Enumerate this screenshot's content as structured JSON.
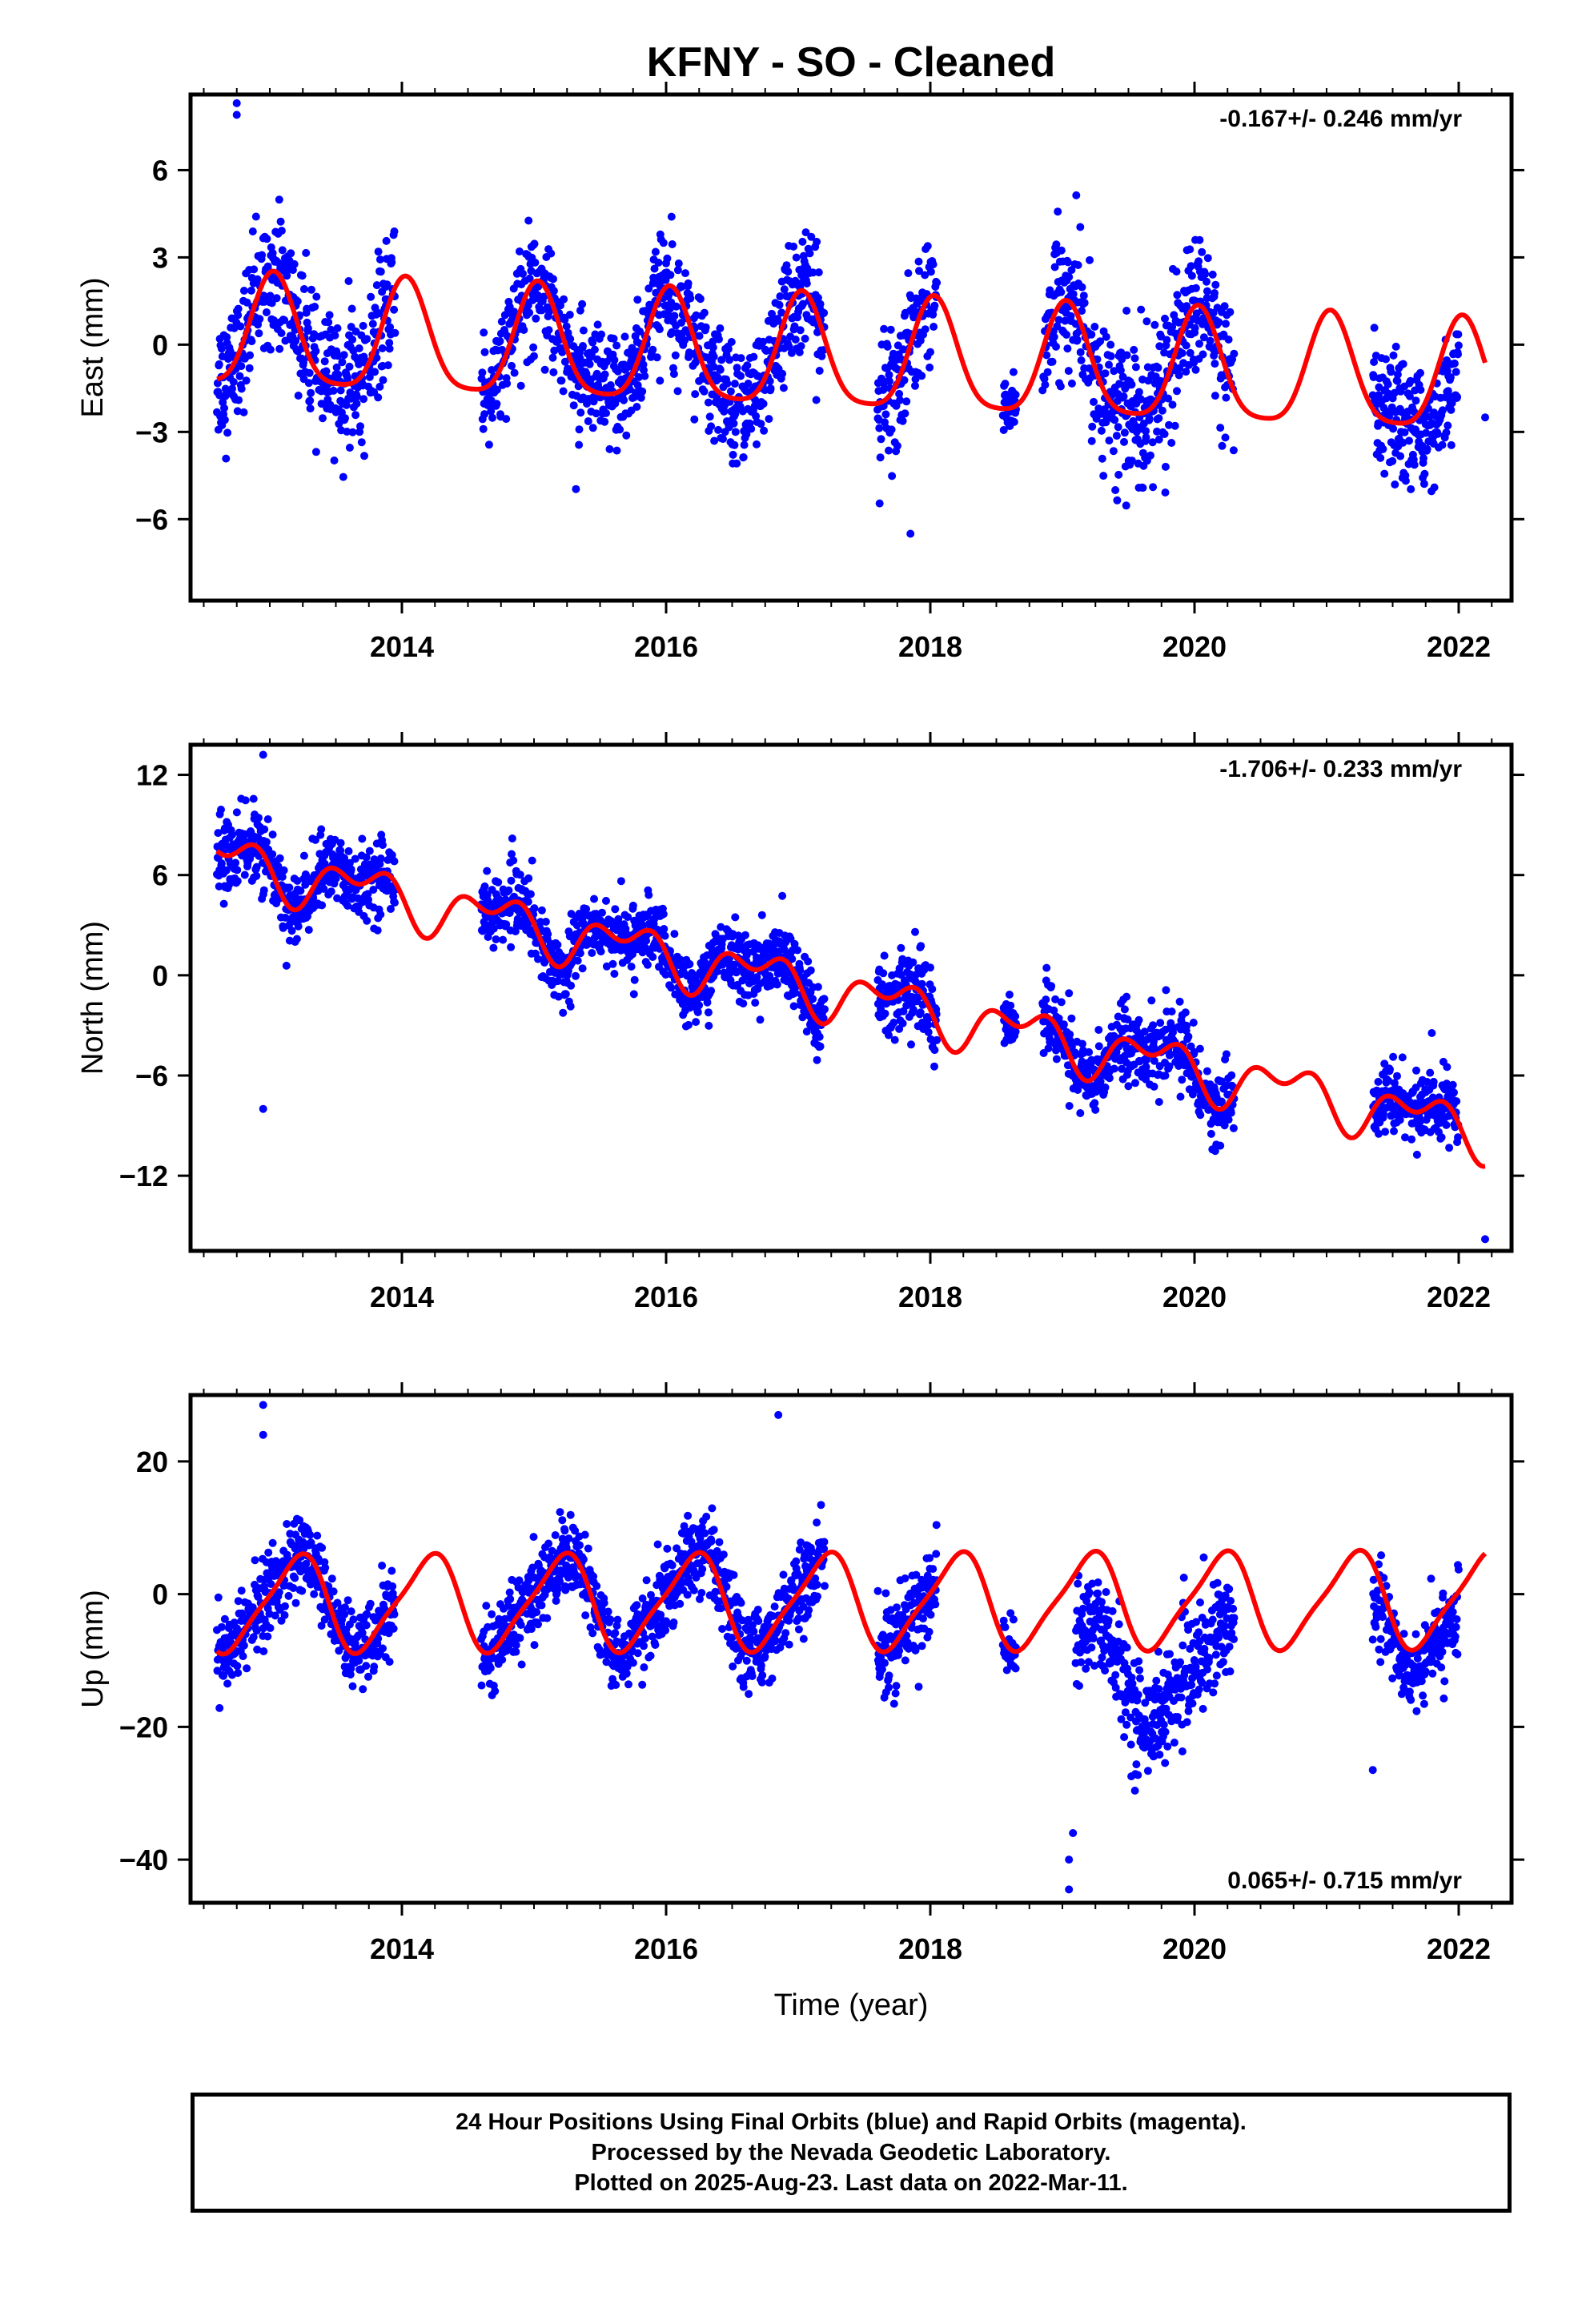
{
  "title": "KFNY  - SO - Cleaned",
  "footer": {
    "line1": "24 Hour Positions Using Final Orbits (blue) and Rapid Orbits (magenta).",
    "line2": "Processed by the Nevada Geodetic Laboratory.",
    "line3": "Plotted on 2025-Aug-23. Last data on 2022-Mar-11."
  },
  "colors": {
    "points": "#0000ff",
    "model": "#ff0000",
    "axes": "#000000"
  },
  "chart_data": [
    {
      "type": "scatter",
      "ylabel": "East (mm)",
      "xlabel": "",
      "xlim": [
        2012.4,
        2022.4
      ],
      "ylim": [
        -8.8,
        8.6
      ],
      "xticks": [
        2014,
        2016,
        2018,
        2020,
        2022
      ],
      "xtick_labels": [
        "2014",
        "2016",
        "2018",
        "2020",
        "2022"
      ],
      "yticks": [
        6,
        3,
        0,
        -3,
        -6
      ],
      "ytick_labels": [
        "6",
        "3",
        "0",
        "−3",
        "−6"
      ],
      "rate": "-0.167+/- 0.246 mm/yr",
      "rate_position": "top-right",
      "model": {
        "offset": 0.3,
        "trend": -0.167,
        "amp1": 1.9,
        "phase1": 0.22,
        "amp2": 0.4,
        "phase2": 0.1,
        "x_start": 2012.6,
        "x_end": 2022.2
      },
      "data_segments": [
        {
          "x": [
            2012.6,
            2013.95
          ],
          "scatter": 1.1
        },
        {
          "x": [
            2014.6,
            2017.2
          ],
          "scatter": 1.0
        },
        {
          "x": [
            2017.6,
            2018.05
          ],
          "scatter": 1.1
        },
        {
          "x": [
            2018.55,
            2018.65
          ],
          "scatter": 0.5
        },
        {
          "x": [
            2018.85,
            2020.3
          ],
          "scatter": 1.2
        },
        {
          "x": [
            2021.35,
            2022.0
          ],
          "scatter": 1.0,
          "extra_trend": -6.0,
          "extra_from": 2021.6
        }
      ],
      "outliers": [
        [
          2012.75,
          8.3
        ],
        [
          2012.75,
          7.9
        ],
        [
          2017.85,
          -6.5
        ],
        [
          2022.2,
          -2.5
        ]
      ]
    },
    {
      "type": "scatter",
      "ylabel": "North (mm)",
      "xlabel": "",
      "xlim": [
        2012.4,
        2022.4
      ],
      "ylim": [
        -16.5,
        13.8
      ],
      "xticks": [
        2014,
        2016,
        2018,
        2020,
        2022
      ],
      "xtick_labels": [
        "2014",
        "2016",
        "2018",
        "2020",
        "2022"
      ],
      "yticks": [
        12,
        6,
        0,
        -6,
        -12
      ],
      "ytick_labels": [
        "12",
        "6",
        "0",
        "−6",
        "−12"
      ],
      "rate": "-1.706+/- 0.233 mm/yr",
      "rate_position": "top-right",
      "model": {
        "offset": 7.0,
        "trend": -1.706,
        "amp1": 1.2,
        "phase1": 0.55,
        "amp2": 0.9,
        "phase2": 0.2,
        "x_start": 2012.6,
        "x_end": 2022.2
      },
      "data_segments": [
        {
          "x": [
            2012.6,
            2013.95
          ],
          "scatter": 1.1
        },
        {
          "x": [
            2014.6,
            2017.2
          ],
          "scatter": 1.0
        },
        {
          "x": [
            2017.6,
            2018.05
          ],
          "scatter": 1.2
        },
        {
          "x": [
            2018.55,
            2018.65
          ],
          "scatter": 0.6
        },
        {
          "x": [
            2018.85,
            2020.3
          ],
          "scatter": 1.1
        },
        {
          "x": [
            2021.35,
            2022.0
          ],
          "scatter": 1.0
        }
      ],
      "outliers": [
        [
          2012.95,
          13.2
        ],
        [
          2012.95,
          -8.0
        ],
        [
          2022.2,
          -15.8
        ]
      ]
    },
    {
      "type": "scatter",
      "ylabel": "Up (mm)",
      "xlabel": "Time (year)",
      "xlim": [
        2012.4,
        2022.4
      ],
      "ylim": [
        -46.5,
        30.0
      ],
      "xticks": [
        2014,
        2016,
        2018,
        2020,
        2022
      ],
      "xtick_labels": [
        "2014",
        "2016",
        "2018",
        "2020",
        "2022"
      ],
      "yticks": [
        20,
        0,
        -20,
        -40
      ],
      "ytick_labels": [
        "20",
        "0",
        "−20",
        "−40"
      ],
      "rate": "0.065+/- 0.715 mm/yr",
      "rate_position": "bottom-right",
      "model": {
        "offset": -1.5,
        "trend": 0.065,
        "amp1": 7.0,
        "phase1": 0.05,
        "amp2": 1.5,
        "phase2": 0.3,
        "x_start": 2012.6,
        "x_end": 2022.2
      },
      "data_segments": [
        {
          "x": [
            2012.6,
            2013.95
          ],
          "scatter": 3.0
        },
        {
          "x": [
            2014.6,
            2017.2
          ],
          "scatter": 3.0
        },
        {
          "x": [
            2017.6,
            2018.05
          ],
          "scatter": 3.5
        },
        {
          "x": [
            2018.55,
            2018.65
          ],
          "scatter": 2.0
        },
        {
          "x": [
            2019.1,
            2020.3
          ],
          "scatter": 4.0,
          "shift": -11
        },
        {
          "x": [
            2021.35,
            2022.0
          ],
          "scatter": 3.0,
          "shift": -3
        }
      ],
      "outliers": [
        [
          2012.95,
          28.5
        ],
        [
          2012.95,
          24.0
        ],
        [
          2016.85,
          27.0
        ],
        [
          2019.05,
          -44.5
        ],
        [
          2019.05,
          -40.0
        ],
        [
          2019.08,
          -36.0
        ],
        [
          2021.35,
          -26.5
        ]
      ]
    }
  ]
}
